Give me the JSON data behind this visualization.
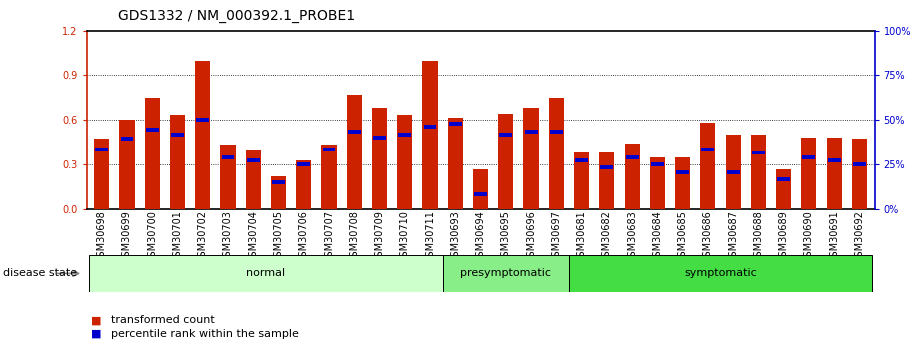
{
  "title": "GDS1332 / NM_000392.1_PROBE1",
  "samples": [
    "GSM30698",
    "GSM30699",
    "GSM30700",
    "GSM30701",
    "GSM30702",
    "GSM30703",
    "GSM30704",
    "GSM30705",
    "GSM30706",
    "GSM30707",
    "GSM30708",
    "GSM30709",
    "GSM30710",
    "GSM30711",
    "GSM30693",
    "GSM30694",
    "GSM30695",
    "GSM30696",
    "GSM30697",
    "GSM30681",
    "GSM30682",
    "GSM30683",
    "GSM30684",
    "GSM30685",
    "GSM30686",
    "GSM30687",
    "GSM30688",
    "GSM30689",
    "GSM30690",
    "GSM30691",
    "GSM30692"
  ],
  "red_values": [
    0.47,
    0.6,
    0.75,
    0.63,
    1.0,
    0.43,
    0.4,
    0.22,
    0.33,
    0.43,
    0.77,
    0.68,
    0.63,
    1.0,
    0.61,
    0.27,
    0.64,
    0.68,
    0.75,
    0.38,
    0.38,
    0.44,
    0.35,
    0.35,
    0.58,
    0.5,
    0.5,
    0.27,
    0.48,
    0.48,
    0.47
  ],
  "blue_values": [
    0.4,
    0.47,
    0.53,
    0.5,
    0.6,
    0.35,
    0.33,
    0.18,
    0.3,
    0.4,
    0.52,
    0.48,
    0.5,
    0.55,
    0.57,
    0.1,
    0.5,
    0.52,
    0.52,
    0.33,
    0.28,
    0.35,
    0.3,
    0.25,
    0.4,
    0.25,
    0.38,
    0.2,
    0.35,
    0.33,
    0.3
  ],
  "groups": [
    {
      "label": "normal",
      "start": 0,
      "end": 13,
      "color": "#ccffcc"
    },
    {
      "label": "presymptomatic",
      "start": 14,
      "end": 18,
      "color": "#88ee88"
    },
    {
      "label": "symptomatic",
      "start": 19,
      "end": 30,
      "color": "#44dd44"
    }
  ],
  "ylim_left": [
    0,
    1.2
  ],
  "ylim_right": [
    0,
    100
  ],
  "yticks_left": [
    0,
    0.3,
    0.6,
    0.9,
    1.2
  ],
  "yticks_right": [
    0,
    25,
    50,
    75,
    100
  ],
  "bar_color_red": "#cc2200",
  "bar_color_blue": "#0000cc",
  "background_color": "#ffffff",
  "title_fontsize": 10,
  "tick_fontsize": 7,
  "label_fontsize": 8,
  "disease_state_label": "disease state",
  "legend_red": "transformed count",
  "legend_blue": "percentile rank within the sample"
}
